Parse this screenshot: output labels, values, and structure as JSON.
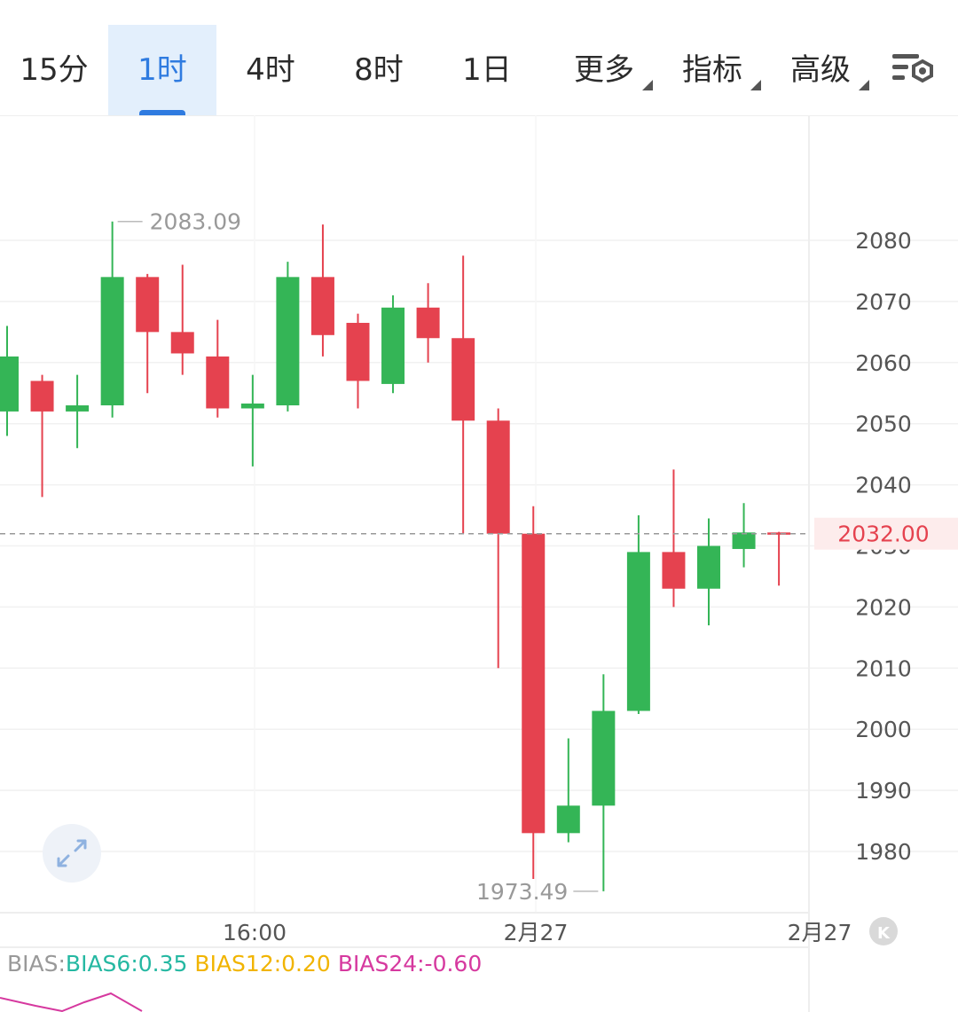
{
  "tabs": [
    {
      "label": "15分",
      "active": false,
      "dropdown": false
    },
    {
      "label": "1时",
      "active": true,
      "dropdown": false
    },
    {
      "label": "4时",
      "active": false,
      "dropdown": false
    },
    {
      "label": "8时",
      "active": false,
      "dropdown": false
    },
    {
      "label": "1日",
      "active": false,
      "dropdown": false
    },
    {
      "label": "更多",
      "active": false,
      "dropdown": true
    },
    {
      "label": "指标",
      "active": false,
      "dropdown": true
    },
    {
      "label": "高级",
      "active": false,
      "dropdown": true
    }
  ],
  "settings_icon": "chart-settings-icon",
  "chart_data": {
    "type": "candlestick",
    "y_ticks": [
      "2080",
      "2070",
      "2060",
      "2050",
      "2040",
      "2030",
      "2020",
      "2010",
      "2000",
      "1990",
      "1980"
    ],
    "x_labels": [
      "16:00",
      "2月27",
      "2月27"
    ],
    "last_price_label": "2032.00",
    "max_label": "2083.09",
    "min_label": "1973.49",
    "candles": [
      {
        "open": 2052,
        "close": 2061,
        "high": 2066,
        "low": 2048
      },
      {
        "open": 2057,
        "close": 2052,
        "high": 2058,
        "low": 2038
      },
      {
        "open": 2052,
        "close": 2053,
        "high": 2058,
        "low": 2046
      },
      {
        "open": 2053,
        "close": 2074,
        "high": 2083.09,
        "low": 2051
      },
      {
        "open": 2074,
        "close": 2065,
        "high": 2074.5,
        "low": 2055
      },
      {
        "open": 2065,
        "close": 2061.5,
        "high": 2076,
        "low": 2058
      },
      {
        "open": 2061,
        "close": 2052.5,
        "high": 2067,
        "low": 2051
      },
      {
        "open": 2052.5,
        "close": 2053.3,
        "high": 2058,
        "low": 2043
      },
      {
        "open": 2053,
        "close": 2074,
        "high": 2076.5,
        "low": 2052
      },
      {
        "open": 2074,
        "close": 2064.5,
        "high": 2082.6,
        "low": 2061
      },
      {
        "open": 2066.5,
        "close": 2057,
        "high": 2068,
        "low": 2052.5
      },
      {
        "open": 2056.5,
        "close": 2069,
        "high": 2071,
        "low": 2055
      },
      {
        "open": 2069,
        "close": 2064,
        "high": 2073,
        "low": 2060
      },
      {
        "open": 2064,
        "close": 2050.5,
        "high": 2077.5,
        "low": 2032
      },
      {
        "open": 2050.5,
        "close": 2032,
        "high": 2052.5,
        "low": 2010
      },
      {
        "open": 2032,
        "close": 1983,
        "high": 2036.5,
        "low": 1975.5
      },
      {
        "open": 1983,
        "close": 1987.5,
        "high": 1998.5,
        "low": 1981.5
      },
      {
        "open": 1987.5,
        "close": 2003,
        "high": 2009,
        "low": 1973.49
      },
      {
        "open": 2003,
        "close": 2029,
        "high": 2035,
        "low": 2002.5
      },
      {
        "open": 2029,
        "close": 2023,
        "high": 2042.5,
        "low": 2020
      },
      {
        "open": 2023,
        "close": 2030,
        "high": 2034.5,
        "low": 2017
      },
      {
        "open": 2029.5,
        "close": 2032.2,
        "high": 2037,
        "low": 2026.5
      },
      {
        "open": 2032.2,
        "close": 2032,
        "high": 2032.3,
        "low": 2023.5
      }
    ]
  },
  "bias": {
    "label": "BIAS:",
    "b6": "BIAS6:0.35",
    "b12": "BIAS12:0.20",
    "b24": "BIAS24:-0.60"
  },
  "colors": {
    "up": "#34b556",
    "down": "#e5424f",
    "accent": "#2f7be0",
    "bias6": "#25b8a2",
    "bias12": "#f1b400",
    "bias24": "#d6399f"
  }
}
